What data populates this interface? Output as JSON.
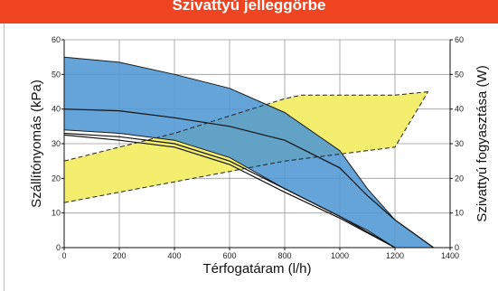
{
  "header": {
    "title": "Szivattyú jelleggörbe"
  },
  "chart_data": {
    "type": "area",
    "title": "",
    "xlabel": "Térfogatáram (l/h)",
    "ylabel_left": "Szállítónyomás (kPa)",
    "ylabel_right": "Szivattyú fogyasztása (W)",
    "xlim": [
      0,
      1400
    ],
    "ylim_left": [
      0,
      60
    ],
    "ylim_right": [
      0,
      60
    ],
    "x_ticks": [
      "0",
      "200",
      "400",
      "600",
      "800",
      "1000",
      "1200",
      "1400"
    ],
    "y_ticks_left": [
      "0",
      "10",
      "20",
      "30",
      "40",
      "50",
      "60"
    ],
    "y_ticks_right": [
      "0",
      "10",
      "20",
      "30",
      "40",
      "50",
      "60"
    ],
    "grid": true,
    "colors": {
      "pressure_area": "#4f97d4",
      "pressure_overlap": "#8aaec8",
      "power_area": "#f3ee6e",
      "header": "#ee4422"
    },
    "series": [
      {
        "axis": "left",
        "role": "pressure_area_upper",
        "x": [
          0,
          200,
          400,
          600,
          800,
          1000,
          1100,
          1200,
          1340
        ],
        "y": [
          55,
          53.5,
          50,
          46,
          39,
          28,
          17,
          8,
          0
        ]
      },
      {
        "axis": "left",
        "role": "pressure_area_lower",
        "x": [
          0,
          200,
          400,
          600,
          800,
          1000,
          1100,
          1200
        ],
        "y": [
          34,
          33,
          31,
          26,
          17,
          9,
          5,
          0
        ]
      },
      {
        "axis": "left",
        "role": "pressure_curve_mid",
        "x": [
          0,
          200,
          400,
          600,
          800,
          1000,
          1100,
          1200,
          1340
        ],
        "y": [
          40,
          39.5,
          37.5,
          35,
          31,
          23,
          15,
          8,
          0
        ]
      },
      {
        "axis": "left",
        "role": "pressure_curve_low_a",
        "x": [
          0,
          200,
          400,
          600,
          800,
          1000,
          1200
        ],
        "y": [
          33,
          32,
          30,
          25,
          17,
          9,
          0
        ]
      },
      {
        "axis": "left",
        "role": "pressure_curve_low_b",
        "x": [
          0,
          200,
          400,
          600,
          800,
          1000,
          1200
        ],
        "y": [
          32.5,
          31,
          29,
          24,
          16,
          8.5,
          0
        ]
      },
      {
        "axis": "right",
        "role": "power_area_upper",
        "x": [
          0,
          200,
          400,
          600,
          800,
          860,
          1000,
          1200,
          1320
        ],
        "y": [
          25,
          29,
          33,
          38,
          43,
          44,
          44,
          44,
          45
        ]
      },
      {
        "axis": "right",
        "role": "power_area_lower",
        "x": [
          0,
          200,
          400,
          600,
          800,
          1000,
          1200,
          1320
        ],
        "y": [
          13,
          16,
          19,
          22,
          25,
          27,
          29,
          45
        ]
      }
    ]
  }
}
